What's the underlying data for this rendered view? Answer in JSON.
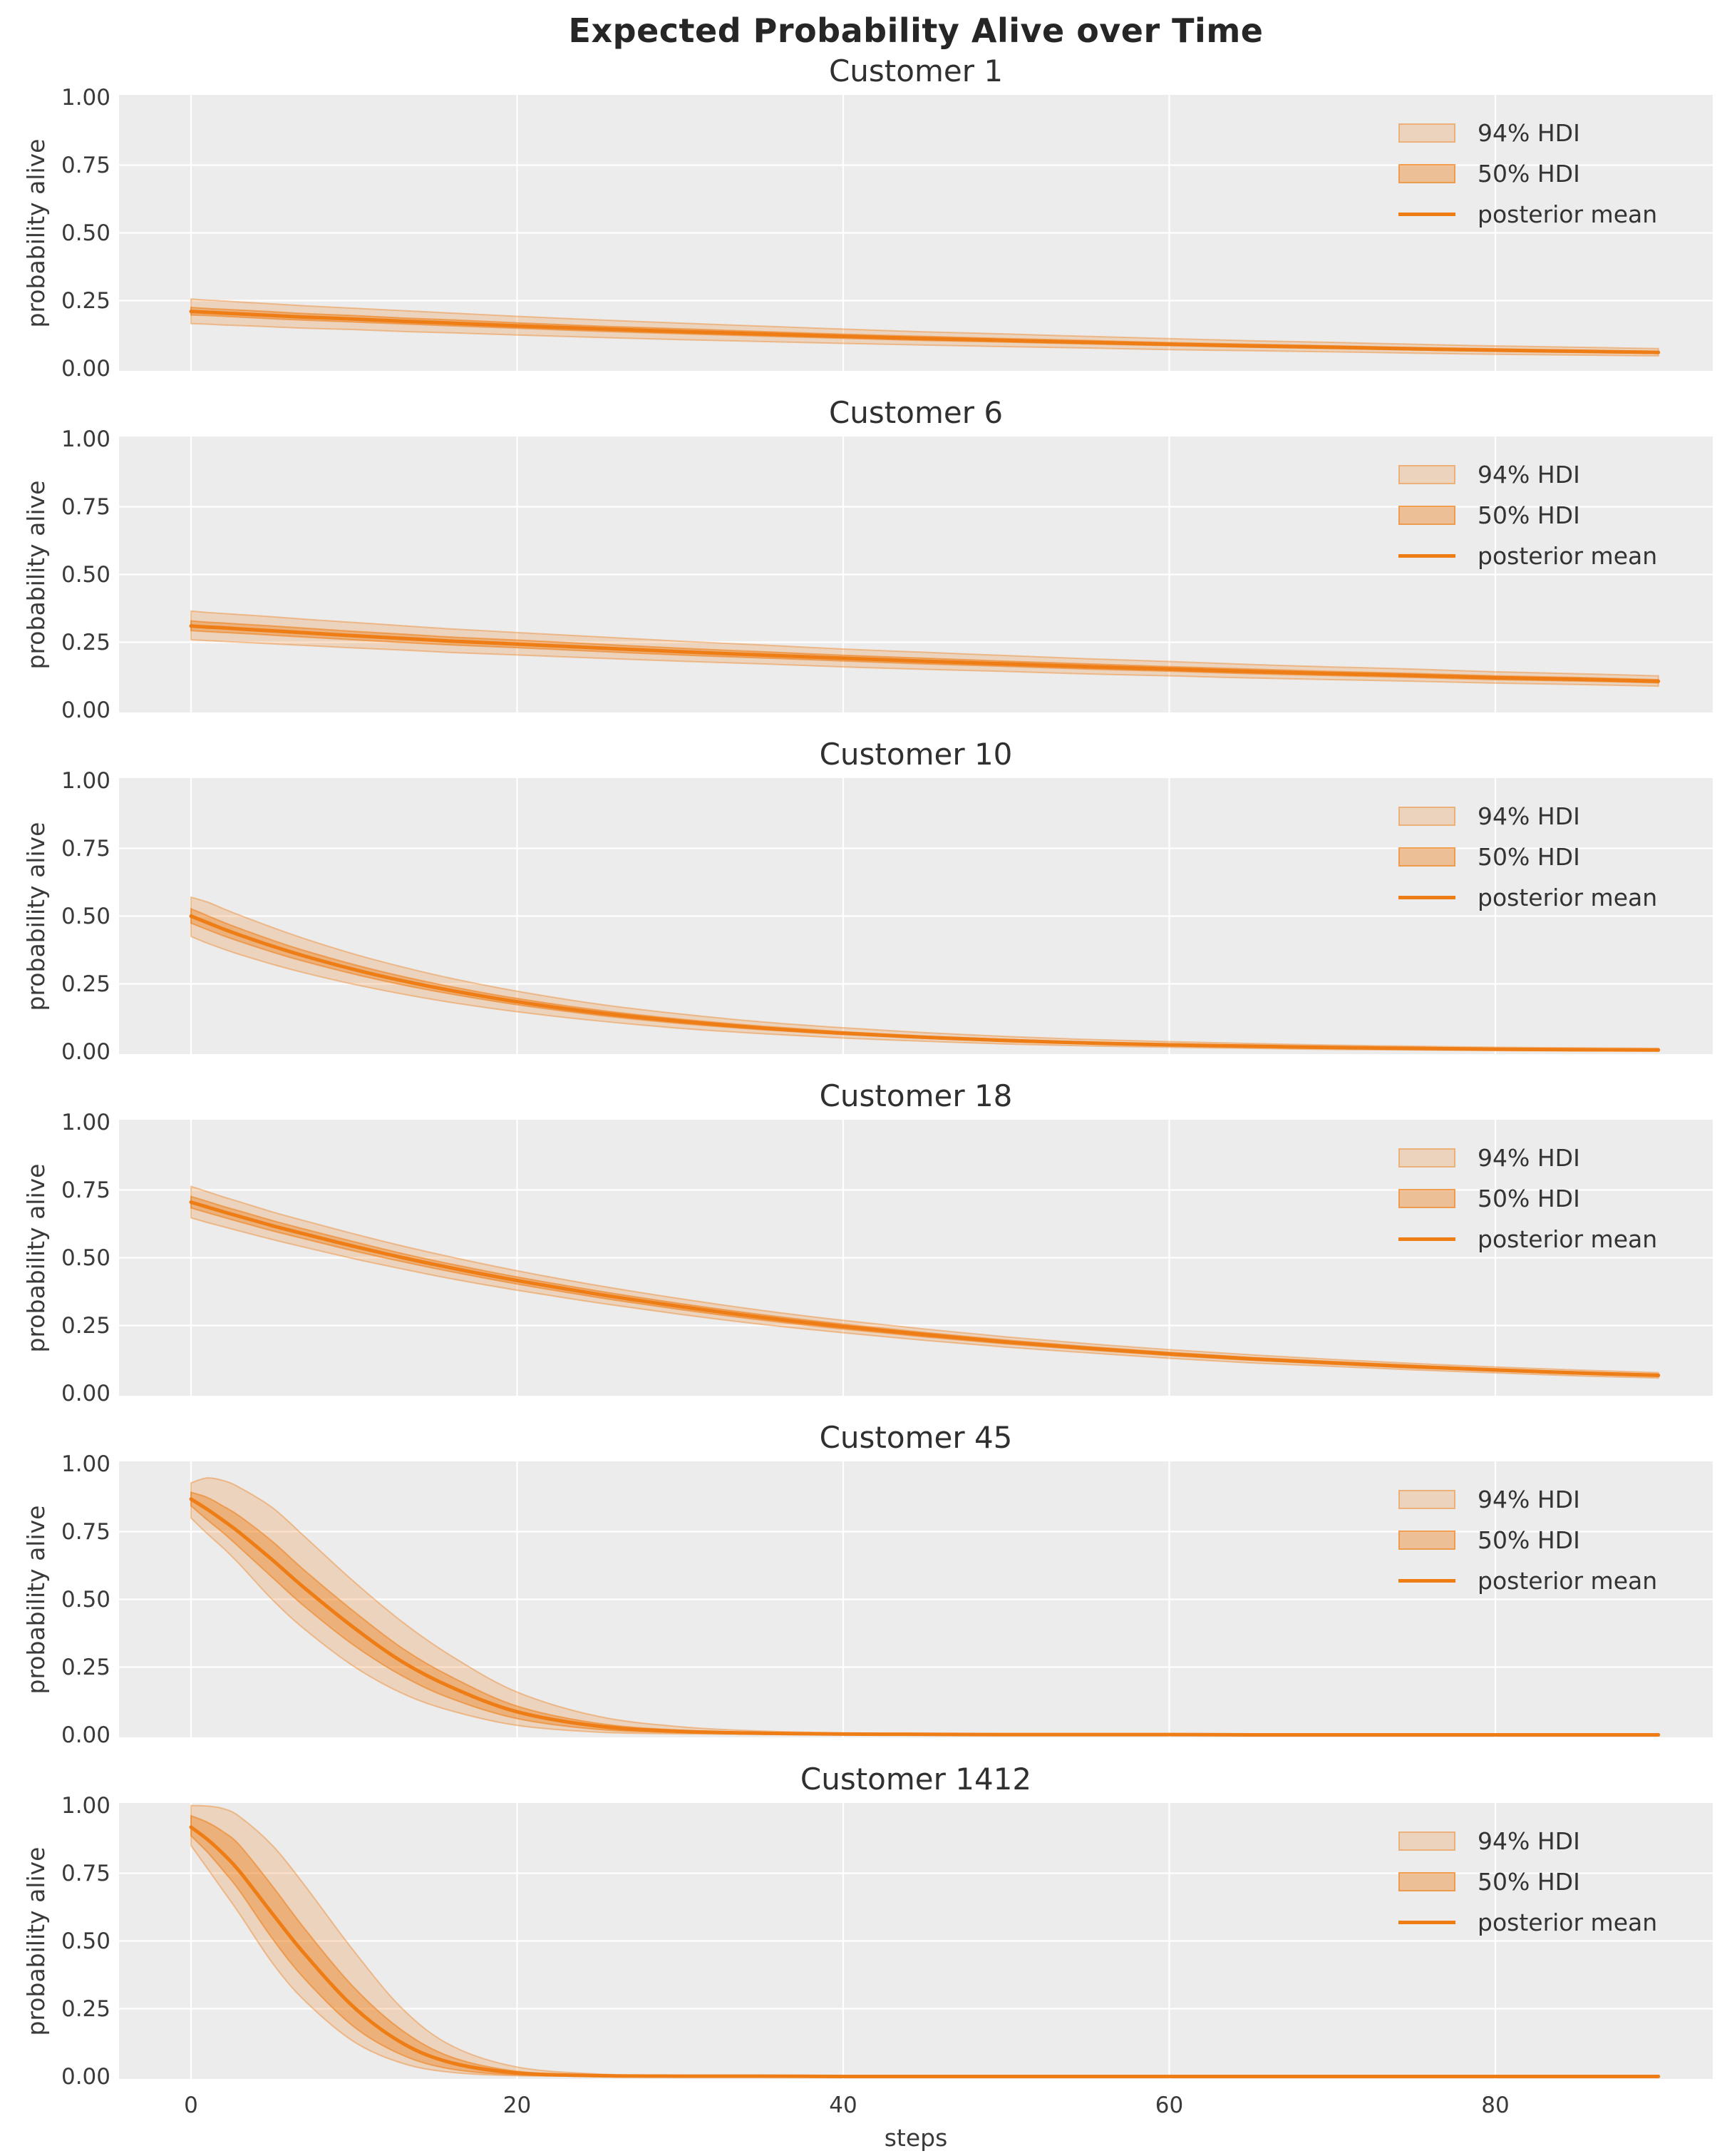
{
  "figure": {
    "title": "Expected Probability Alive over Time",
    "xlabel": "steps",
    "ylabel": "probability alive",
    "x_tick_labels": [
      "0",
      "20",
      "40",
      "60",
      "80"
    ],
    "x_tick_values": [
      0,
      20,
      40,
      60,
      80
    ],
    "y_tick_labels": [
      "1.00",
      "0.75",
      "0.50",
      "0.25",
      "0.00"
    ],
    "y_tick_values": [
      1.0,
      0.75,
      0.5,
      0.25,
      0.0
    ],
    "legend": {
      "hdi94_label": "94% HDI",
      "hdi50_label": "50% HDI",
      "mean_label": "posterior mean"
    },
    "colors": {
      "accent_orange": "#EE7D16",
      "hdi94_fill": "rgba(238,125,22,0.22)",
      "hdi50_fill": "rgba(238,125,22,0.40)",
      "hdi94_edge": "rgba(238,125,22,0.40)",
      "hdi50_edge": "rgba(238,125,22,0.55)",
      "plot_background": "#ECECEC",
      "gridline": "#FFFFFF",
      "text": "#3a3a3a",
      "title_text": "#262626"
    }
  },
  "chart_data": [
    {
      "type": "line",
      "title": "Customer 1",
      "xlabel": "steps",
      "ylabel": "probability alive",
      "xlim": [
        -4.4,
        93.4
      ],
      "ylim": [
        0,
        1
      ],
      "legend_entries": [
        "94% HDI",
        "50% HDI",
        "posterior mean"
      ],
      "steps": [
        0,
        1,
        2,
        3,
        5,
        7,
        10,
        13,
        16,
        20,
        25,
        30,
        35,
        40,
        45,
        50,
        55,
        60,
        65,
        70,
        75,
        80,
        85,
        90
      ],
      "series": {
        "posterior_mean": [
          0.21,
          0.207,
          0.204,
          0.201,
          0.195,
          0.189,
          0.182,
          0.174,
          0.167,
          0.157,
          0.146,
          0.136,
          0.127,
          0.118,
          0.11,
          0.103,
          0.096,
          0.089,
          0.083,
          0.078,
          0.072,
          0.067,
          0.063,
          0.059
        ],
        "hdi_94_upper": [
          0.256,
          0.252,
          0.249,
          0.245,
          0.238,
          0.231,
          0.222,
          0.213,
          0.204,
          0.192,
          0.179,
          0.167,
          0.156,
          0.145,
          0.135,
          0.127,
          0.118,
          0.11,
          0.102,
          0.096,
          0.089,
          0.083,
          0.078,
          0.073
        ],
        "hdi_94_lower": [
          0.165,
          0.163,
          0.16,
          0.158,
          0.153,
          0.148,
          0.143,
          0.136,
          0.131,
          0.123,
          0.114,
          0.106,
          0.099,
          0.092,
          0.086,
          0.08,
          0.075,
          0.069,
          0.065,
          0.061,
          0.056,
          0.052,
          0.049,
          0.046
        ],
        "hdi_50_upper": [
          0.225,
          0.221,
          0.218,
          0.215,
          0.209,
          0.202,
          0.195,
          0.186,
          0.179,
          0.168,
          0.156,
          0.146,
          0.136,
          0.126,
          0.118,
          0.11,
          0.103,
          0.095,
          0.089,
          0.083,
          0.077,
          0.072,
          0.067,
          0.063
        ],
        "hdi_50_lower": [
          0.197,
          0.195,
          0.192,
          0.189,
          0.183,
          0.178,
          0.171,
          0.164,
          0.157,
          0.148,
          0.137,
          0.128,
          0.119,
          0.111,
          0.103,
          0.097,
          0.09,
          0.084,
          0.078,
          0.073,
          0.068,
          0.063,
          0.059,
          0.055
        ]
      }
    },
    {
      "type": "line",
      "title": "Customer 6",
      "xlabel": "steps",
      "ylabel": "probability alive",
      "xlim": [
        -4.4,
        93.4
      ],
      "ylim": [
        0,
        1
      ],
      "legend_entries": [
        "94% HDI",
        "50% HDI",
        "posterior mean"
      ],
      "steps": [
        0,
        1,
        2,
        3,
        5,
        7,
        10,
        13,
        16,
        20,
        25,
        30,
        35,
        40,
        45,
        50,
        55,
        60,
        65,
        70,
        75,
        80,
        85,
        90
      ],
      "series": {
        "posterior_mean": [
          0.31,
          0.306,
          0.303,
          0.299,
          0.292,
          0.285,
          0.274,
          0.264,
          0.254,
          0.243,
          0.229,
          0.215,
          0.203,
          0.191,
          0.18,
          0.17,
          0.16,
          0.151,
          0.142,
          0.134,
          0.127,
          0.119,
          0.113,
          0.106
        ],
        "hdi_94_upper": [
          0.365,
          0.36,
          0.356,
          0.352,
          0.344,
          0.335,
          0.323,
          0.311,
          0.299,
          0.286,
          0.27,
          0.254,
          0.24,
          0.225,
          0.213,
          0.201,
          0.189,
          0.179,
          0.168,
          0.159,
          0.151,
          0.141,
          0.134,
          0.126
        ],
        "hdi_94_lower": [
          0.259,
          0.256,
          0.253,
          0.25,
          0.244,
          0.238,
          0.229,
          0.221,
          0.212,
          0.203,
          0.191,
          0.18,
          0.17,
          0.159,
          0.15,
          0.142,
          0.133,
          0.126,
          0.118,
          0.112,
          0.106,
          0.099,
          0.094,
          0.088
        ],
        "hdi_50_upper": [
          0.329,
          0.324,
          0.321,
          0.317,
          0.31,
          0.302,
          0.29,
          0.28,
          0.269,
          0.258,
          0.243,
          0.228,
          0.215,
          0.202,
          0.191,
          0.18,
          0.17,
          0.16,
          0.151,
          0.142,
          0.135,
          0.126,
          0.12,
          0.112
        ],
        "hdi_50_lower": [
          0.293,
          0.289,
          0.286,
          0.283,
          0.276,
          0.269,
          0.259,
          0.249,
          0.24,
          0.23,
          0.216,
          0.203,
          0.192,
          0.181,
          0.17,
          0.161,
          0.151,
          0.143,
          0.134,
          0.127,
          0.12,
          0.112,
          0.107,
          0.1
        ]
      }
    },
    {
      "type": "line",
      "title": "Customer 10",
      "xlabel": "steps",
      "ylabel": "probability alive",
      "xlim": [
        -4.4,
        93.4
      ],
      "ylim": [
        0,
        1
      ],
      "legend_entries": [
        "94% HDI",
        "50% HDI",
        "posterior mean"
      ],
      "steps": [
        0,
        1,
        2,
        3,
        5,
        7,
        10,
        13,
        16,
        20,
        25,
        30,
        35,
        40,
        45,
        50,
        55,
        60,
        65,
        70,
        75,
        80,
        85,
        90
      ],
      "series": {
        "posterior_mean": [
          0.5,
          0.476,
          0.452,
          0.43,
          0.389,
          0.352,
          0.303,
          0.261,
          0.225,
          0.184,
          0.143,
          0.112,
          0.087,
          0.068,
          0.053,
          0.041,
          0.032,
          0.025,
          0.02,
          0.015,
          0.012,
          0.009,
          0.007,
          0.006
        ],
        "hdi_94_upper": [
          0.57,
          0.552,
          0.527,
          0.503,
          0.458,
          0.416,
          0.36,
          0.312,
          0.27,
          0.223,
          0.175,
          0.139,
          0.11,
          0.088,
          0.07,
          0.056,
          0.045,
          0.037,
          0.03,
          0.024,
          0.02,
          0.016,
          0.014,
          0.012
        ],
        "hdi_94_lower": [
          0.425,
          0.4,
          0.378,
          0.358,
          0.322,
          0.29,
          0.248,
          0.212,
          0.181,
          0.147,
          0.113,
          0.086,
          0.066,
          0.05,
          0.038,
          0.028,
          0.021,
          0.016,
          0.012,
          0.008,
          0.006,
          0.004,
          0.003,
          0.002
        ],
        "hdi_50_upper": [
          0.527,
          0.502,
          0.477,
          0.454,
          0.411,
          0.372,
          0.321,
          0.277,
          0.239,
          0.196,
          0.153,
          0.12,
          0.094,
          0.073,
          0.057,
          0.045,
          0.035,
          0.028,
          0.022,
          0.017,
          0.014,
          0.011,
          0.009,
          0.008
        ],
        "hdi_50_lower": [
          0.474,
          0.45,
          0.427,
          0.406,
          0.367,
          0.332,
          0.286,
          0.246,
          0.212,
          0.173,
          0.134,
          0.104,
          0.081,
          0.063,
          0.049,
          0.037,
          0.029,
          0.022,
          0.017,
          0.013,
          0.01,
          0.008,
          0.006,
          0.005
        ]
      }
    },
    {
      "type": "line",
      "title": "Customer 18",
      "xlabel": "steps",
      "ylabel": "probability alive",
      "xlim": [
        -4.4,
        93.4
      ],
      "ylim": [
        0,
        1
      ],
      "legend_entries": [
        "94% HDI",
        "50% HDI",
        "posterior mean"
      ],
      "steps": [
        0,
        1,
        2,
        3,
        5,
        7,
        10,
        13,
        16,
        20,
        25,
        30,
        35,
        40,
        45,
        50,
        55,
        60,
        65,
        70,
        75,
        80,
        85,
        90
      ],
      "series": {
        "posterior_mean": [
          0.705,
          0.687,
          0.669,
          0.652,
          0.618,
          0.587,
          0.542,
          0.5,
          0.462,
          0.416,
          0.365,
          0.32,
          0.28,
          0.246,
          0.216,
          0.189,
          0.166,
          0.145,
          0.127,
          0.112,
          0.098,
          0.086,
          0.075,
          0.066
        ],
        "hdi_94_upper": [
          0.763,
          0.744,
          0.724,
          0.706,
          0.669,
          0.636,
          0.588,
          0.543,
          0.502,
          0.452,
          0.397,
          0.349,
          0.306,
          0.269,
          0.237,
          0.208,
          0.183,
          0.161,
          0.142,
          0.125,
          0.11,
          0.097,
          0.086,
          0.076
        ],
        "hdi_94_lower": [
          0.647,
          0.63,
          0.614,
          0.598,
          0.567,
          0.538,
          0.496,
          0.458,
          0.422,
          0.38,
          0.333,
          0.291,
          0.254,
          0.223,
          0.195,
          0.17,
          0.149,
          0.129,
          0.112,
          0.099,
          0.086,
          0.075,
          0.064,
          0.056
        ],
        "hdi_50_upper": [
          0.726,
          0.708,
          0.689,
          0.672,
          0.637,
          0.605,
          0.559,
          0.515,
          0.476,
          0.429,
          0.377,
          0.331,
          0.29,
          0.255,
          0.224,
          0.196,
          0.172,
          0.151,
          0.132,
          0.117,
          0.103,
          0.09,
          0.079,
          0.07
        ],
        "hdi_50_lower": [
          0.684,
          0.666,
          0.649,
          0.632,
          0.599,
          0.569,
          0.525,
          0.485,
          0.448,
          0.403,
          0.353,
          0.309,
          0.27,
          0.237,
          0.208,
          0.182,
          0.16,
          0.139,
          0.122,
          0.107,
          0.093,
          0.082,
          0.071,
          0.062
        ]
      }
    },
    {
      "type": "line",
      "title": "Customer 45",
      "xlabel": "steps",
      "ylabel": "probability alive",
      "xlim": [
        -4.4,
        93.4
      ],
      "ylim": [
        0,
        1
      ],
      "legend_entries": [
        "94% HDI",
        "50% HDI",
        "posterior mean"
      ],
      "steps": [
        0,
        1,
        2,
        3,
        5,
        7,
        10,
        13,
        16,
        20,
        25,
        30,
        35,
        40,
        45,
        50,
        55,
        60,
        65,
        70,
        75,
        80,
        85,
        90
      ],
      "series": {
        "posterior_mean": [
          0.87,
          0.832,
          0.79,
          0.745,
          0.645,
          0.54,
          0.395,
          0.268,
          0.175,
          0.085,
          0.032,
          0.013,
          0.006,
          0.003,
          0.002,
          0.001,
          0.001,
          0.001,
          0.0,
          0.0,
          0.0,
          0.0,
          0.0,
          0.0
        ],
        "hdi_94_upper": [
          0.93,
          0.948,
          0.938,
          0.912,
          0.838,
          0.73,
          0.565,
          0.415,
          0.29,
          0.158,
          0.068,
          0.03,
          0.014,
          0.007,
          0.004,
          0.002,
          0.002,
          0.001,
          0.001,
          0.001,
          0.001,
          0.0,
          0.0,
          0.0
        ],
        "hdi_94_lower": [
          0.8,
          0.742,
          0.688,
          0.628,
          0.498,
          0.388,
          0.252,
          0.152,
          0.088,
          0.035,
          0.01,
          0.004,
          0.002,
          0.001,
          0.0,
          0.0,
          0.0,
          0.0,
          0.0,
          0.0,
          0.0,
          0.0,
          0.0,
          0.0
        ],
        "hdi_50_upper": [
          0.895,
          0.876,
          0.843,
          0.806,
          0.713,
          0.605,
          0.455,
          0.318,
          0.213,
          0.106,
          0.042,
          0.017,
          0.008,
          0.004,
          0.002,
          0.001,
          0.001,
          0.001,
          0.0,
          0.0,
          0.0,
          0.0,
          0.0,
          0.0
        ],
        "hdi_50_lower": [
          0.845,
          0.793,
          0.744,
          0.69,
          0.58,
          0.472,
          0.33,
          0.216,
          0.133,
          0.06,
          0.02,
          0.008,
          0.003,
          0.002,
          0.001,
          0.0,
          0.0,
          0.0,
          0.0,
          0.0,
          0.0,
          0.0,
          0.0,
          0.0
        ]
      }
    },
    {
      "type": "line",
      "title": "Customer 1412",
      "xlabel": "steps",
      "ylabel": "probability alive",
      "xlim": [
        -4.4,
        93.4
      ],
      "ylim": [
        0,
        1
      ],
      "legend_entries": [
        "94% HDI",
        "50% HDI",
        "posterior mean"
      ],
      "steps": [
        0,
        1,
        2,
        3,
        5,
        7,
        10,
        13,
        16,
        20,
        25,
        30,
        35,
        40,
        45,
        50,
        55,
        60,
        65,
        70,
        75,
        80,
        85,
        90
      ],
      "series": {
        "posterior_mean": [
          0.92,
          0.875,
          0.82,
          0.755,
          0.6,
          0.45,
          0.255,
          0.122,
          0.05,
          0.013,
          0.003,
          0.001,
          0.001,
          0.0,
          0.0,
          0.0,
          0.0,
          0.0,
          0.0,
          0.0,
          0.0,
          0.0,
          0.0,
          0.0
        ],
        "hdi_94_upper": [
          1.0,
          0.998,
          0.988,
          0.958,
          0.852,
          0.703,
          0.462,
          0.248,
          0.113,
          0.035,
          0.009,
          0.003,
          0.001,
          0.001,
          0.0,
          0.0,
          0.0,
          0.0,
          0.0,
          0.0,
          0.0,
          0.0,
          0.0,
          0.0
        ],
        "hdi_94_lower": [
          0.852,
          0.768,
          0.683,
          0.598,
          0.418,
          0.278,
          0.128,
          0.048,
          0.015,
          0.003,
          0.001,
          0.0,
          0.0,
          0.0,
          0.0,
          0.0,
          0.0,
          0.0,
          0.0,
          0.0,
          0.0,
          0.0,
          0.0,
          0.0
        ],
        "hdi_50_upper": [
          0.962,
          0.938,
          0.902,
          0.852,
          0.702,
          0.543,
          0.328,
          0.168,
          0.071,
          0.019,
          0.005,
          0.002,
          0.001,
          0.0,
          0.0,
          0.0,
          0.0,
          0.0,
          0.0,
          0.0,
          0.0,
          0.0,
          0.0,
          0.0
        ],
        "hdi_50_lower": [
          0.888,
          0.828,
          0.758,
          0.683,
          0.508,
          0.358,
          0.183,
          0.078,
          0.027,
          0.006,
          0.002,
          0.001,
          0.0,
          0.0,
          0.0,
          0.0,
          0.0,
          0.0,
          0.0,
          0.0,
          0.0,
          0.0,
          0.0,
          0.0
        ]
      }
    }
  ]
}
